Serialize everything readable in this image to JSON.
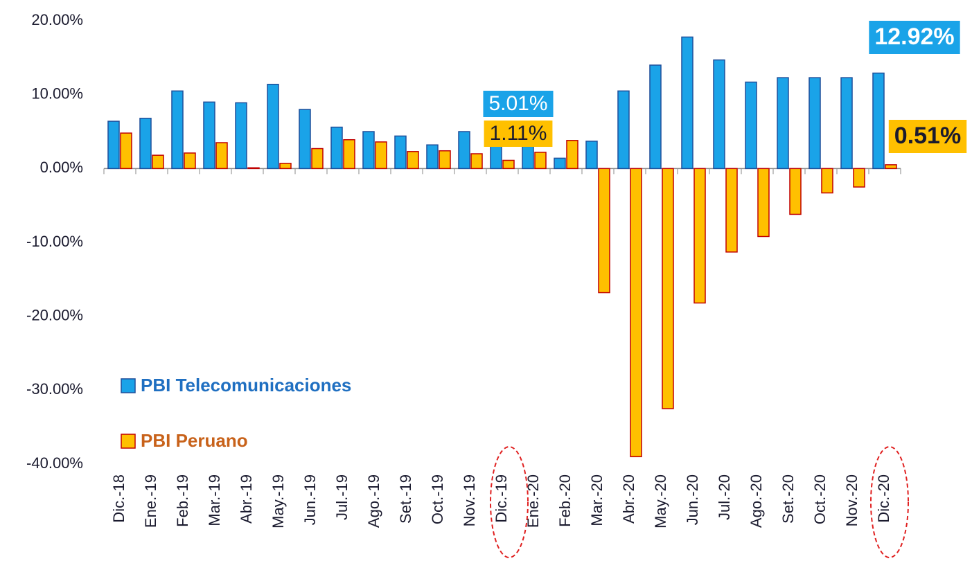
{
  "chart_data": {
    "type": "bar",
    "categories": [
      "Dic.-18",
      "Ene.-19",
      "Feb.-19",
      "Mar.-19",
      "Abr.-19",
      "May.-19",
      "Jun.-19",
      "Jul.-19",
      "Ago.-19",
      "Set.-19",
      "Oct.-19",
      "Nov.-19",
      "Dic.-19",
      "Ene.-20",
      "Feb.-20",
      "Mar.-20",
      "Abr.-20",
      "May.-20",
      "Jun.-20",
      "Jul.-20",
      "Ago.-20",
      "Set.-20",
      "Oct.-20",
      "Nov.-20",
      "Dic.-20"
    ],
    "series": [
      {
        "name": "PBI Telecomunicaciones",
        "color": "#1aa3e8",
        "values": [
          6.4,
          6.8,
          10.5,
          9.0,
          8.9,
          11.4,
          8.0,
          5.6,
          5.0,
          4.4,
          3.2,
          5.0,
          5.01,
          3.0,
          1.4,
          3.7,
          10.5,
          14.0,
          17.8,
          14.7,
          11.7,
          12.3,
          12.3,
          12.3,
          12.92
        ],
        "value_labels": [
          null,
          null,
          null,
          null,
          null,
          null,
          null,
          null,
          null,
          null,
          null,
          null,
          "5.01%",
          null,
          null,
          null,
          null,
          null,
          null,
          null,
          null,
          null,
          null,
          null,
          "12.92%"
        ]
      },
      {
        "name": "PBI Peruano",
        "color": "#ffc000",
        "values": [
          4.8,
          1.8,
          2.1,
          3.5,
          0.1,
          0.7,
          2.7,
          3.9,
          3.6,
          2.3,
          2.4,
          2.0,
          1.11,
          2.2,
          3.8,
          -16.8,
          -39.0,
          -32.5,
          -18.2,
          -11.3,
          -9.2,
          -6.2,
          -3.3,
          -2.5,
          0.51
        ],
        "value_labels": [
          null,
          null,
          null,
          null,
          null,
          null,
          null,
          null,
          null,
          null,
          null,
          null,
          "1.11%",
          null,
          null,
          null,
          null,
          null,
          null,
          null,
          null,
          null,
          null,
          null,
          "0.51%"
        ]
      }
    ],
    "ylim": [
      -40,
      20
    ],
    "yticks": [
      {
        "value": -40,
        "label": "-40.00%"
      },
      {
        "value": -30,
        "label": "-30.00%"
      },
      {
        "value": -20,
        "label": "-20.00%"
      },
      {
        "value": -10,
        "label": "-10.00%"
      },
      {
        "value": 0,
        "label": "0.00%"
      },
      {
        "value": 10,
        "label": "10.00%"
      },
      {
        "value": 20,
        "label": "20.00%"
      }
    ],
    "grid": false
  }
}
